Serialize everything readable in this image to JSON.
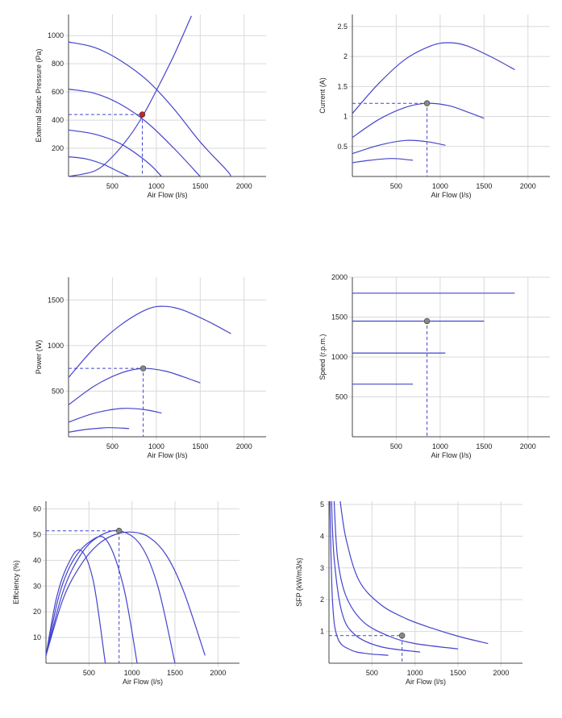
{
  "chart_data": [
    {
      "type": "line",
      "id": "pressure",
      "xlabel": "Air Flow (l/s)",
      "ylabel": "External Static Pressure (Pa)",
      "xlim": [
        0,
        2250
      ],
      "ylim": [
        0,
        1150
      ],
      "xticks": [
        500,
        1000,
        1500,
        2000
      ],
      "yticks": [
        200,
        400,
        600,
        800,
        1000
      ],
      "series": [
        {
          "x": [
            0,
            300,
            600,
            900,
            1200,
            1500,
            1800,
            1850
          ],
          "values": [
            955,
            915,
            820,
            680,
            480,
            245,
            45,
            0
          ]
        },
        {
          "x": [
            0,
            300,
            600,
            900,
            1200,
            1500
          ],
          "values": [
            620,
            590,
            510,
            380,
            200,
            0
          ]
        },
        {
          "x": [
            0,
            300,
            600,
            900,
            1060
          ],
          "values": [
            330,
            300,
            230,
            100,
            0
          ]
        },
        {
          "x": [
            0,
            200,
            400,
            600,
            690
          ],
          "values": [
            140,
            125,
            85,
            25,
            0
          ]
        },
        {
          "x": [
            0,
            300,
            500,
            700,
            850,
            1000,
            1200,
            1400
          ],
          "values": [
            0,
            40,
            140,
            290,
            435,
            610,
            860,
            1140
          ]
        }
      ],
      "point": {
        "x": 840,
        "y": 440,
        "color": "#cc2222"
      }
    },
    {
      "type": "line",
      "id": "current",
      "xlabel": "Air Flow (l/s)",
      "ylabel": "Current (A)",
      "xlim": [
        0,
        2250
      ],
      "ylim": [
        0,
        2.7
      ],
      "xticks": [
        500,
        1000,
        1500,
        2000
      ],
      "yticks": [
        0.5,
        1,
        1.5,
        2,
        2.5
      ],
      "series": [
        {
          "x": [
            0,
            300,
            600,
            900,
            1100,
            1300,
            1600,
            1850
          ],
          "values": [
            1.05,
            1.55,
            1.95,
            2.18,
            2.23,
            2.18,
            1.98,
            1.78
          ]
        },
        {
          "x": [
            0,
            300,
            600,
            850,
            1100,
            1300,
            1500
          ],
          "values": [
            0.65,
            0.95,
            1.15,
            1.22,
            1.18,
            1.08,
            0.97
          ]
        },
        {
          "x": [
            0,
            300,
            600,
            850,
            1060
          ],
          "values": [
            0.38,
            0.52,
            0.6,
            0.58,
            0.52
          ]
        },
        {
          "x": [
            0,
            200,
            450,
            690
          ],
          "values": [
            0.23,
            0.27,
            0.3,
            0.27
          ]
        }
      ],
      "point": {
        "x": 850,
        "y": 1.22,
        "color": "#888888"
      }
    },
    {
      "type": "line",
      "id": "power",
      "xlabel": "Air Flow (l/s)",
      "ylabel": "Power (W)",
      "xlim": [
        0,
        2250
      ],
      "ylim": [
        0,
        1750
      ],
      "xticks": [
        500,
        1000,
        1500,
        2000
      ],
      "yticks": [
        500,
        1000,
        1500
      ],
      "series": [
        {
          "x": [
            0,
            300,
            600,
            900,
            1100,
            1300,
            1600,
            1850
          ],
          "values": [
            650,
            980,
            1230,
            1400,
            1430,
            1390,
            1260,
            1130
          ]
        },
        {
          "x": [
            0,
            300,
            600,
            850,
            1100,
            1300,
            1500
          ],
          "values": [
            350,
            560,
            700,
            750,
            720,
            660,
            590
          ]
        },
        {
          "x": [
            0,
            300,
            600,
            850,
            1060
          ],
          "values": [
            160,
            260,
            310,
            300,
            260
          ]
        },
        {
          "x": [
            0,
            200,
            450,
            690
          ],
          "values": [
            50,
            80,
            100,
            90
          ]
        }
      ],
      "point": {
        "x": 850,
        "y": 750,
        "color": "#888888"
      }
    },
    {
      "type": "line",
      "id": "speed",
      "xlabel": "Air Flow (l/s)",
      "ylabel": "Speed (r.p.m.)",
      "xlim": [
        0,
        2250
      ],
      "ylim": [
        0,
        2000
      ],
      "xticks": [
        500,
        1000,
        1500,
        2000
      ],
      "yticks": [
        500,
        1000,
        1500,
        2000
      ],
      "series": [
        {
          "x": [
            0,
            1850
          ],
          "values": [
            1800,
            1800
          ]
        },
        {
          "x": [
            0,
            1500
          ],
          "values": [
            1450,
            1450
          ]
        },
        {
          "x": [
            0,
            1060
          ],
          "values": [
            1050,
            1050
          ]
        },
        {
          "x": [
            0,
            690
          ],
          "values": [
            660,
            660
          ]
        }
      ],
      "point": {
        "x": 850,
        "y": 1450,
        "color": "#888888"
      }
    },
    {
      "type": "line",
      "id": "efficiency",
      "xlabel": "Air Flow (l/s)",
      "ylabel": "Efficiency (%)",
      "xlim": [
        0,
        2250
      ],
      "ylim": [
        0,
        63
      ],
      "xticks": [
        500,
        1000,
        1500,
        2000
      ],
      "yticks": [
        10,
        20,
        30,
        40,
        50,
        60
      ],
      "series": [
        {
          "x": [
            0,
            200,
            400,
            600,
            800,
            1000,
            1200,
            1400,
            1600,
            1850
          ],
          "values": [
            3,
            25,
            38,
            46,
            50,
            51,
            49,
            42,
            28,
            3
          ]
        },
        {
          "x": [
            0,
            200,
            400,
            600,
            850,
            1100,
            1300,
            1500
          ],
          "values": [
            3,
            28,
            42,
            49,
            51.5,
            46,
            30,
            0
          ]
        },
        {
          "x": [
            0,
            150,
            300,
            500,
            700,
            900,
            1060
          ],
          "values": [
            3,
            26,
            39,
            47,
            48,
            30,
            0
          ]
        },
        {
          "x": [
            0,
            120,
            250,
            400,
            550,
            690
          ],
          "values": [
            3,
            25,
            38,
            44,
            32,
            0
          ]
        }
      ],
      "point": {
        "x": 850,
        "y": 51.5,
        "color": "#888888"
      }
    },
    {
      "type": "line",
      "id": "sfp",
      "xlabel": "Air Flow (l/s)",
      "ylabel": "SFP (kW/m3/s)",
      "xlim": [
        0,
        2250
      ],
      "ylim": [
        0,
        5.1
      ],
      "xticks": [
        500,
        1000,
        1500,
        2000
      ],
      "yticks": [
        1,
        2,
        3,
        4,
        5
      ],
      "series": [
        {
          "x": [
            130,
            200,
            350,
            600,
            900,
            1200,
            1500,
            1850
          ],
          "values": [
            5.1,
            3.9,
            2.6,
            1.85,
            1.4,
            1.1,
            0.85,
            0.62
          ]
        },
        {
          "x": [
            60,
            100,
            200,
            400,
            700,
            1000,
            1500
          ],
          "values": [
            5.1,
            3.3,
            2.1,
            1.3,
            0.85,
            0.62,
            0.45
          ]
        },
        {
          "x": [
            30,
            60,
            150,
            300,
            600,
            1060
          ],
          "values": [
            5.1,
            3.3,
            1.6,
            0.9,
            0.52,
            0.35
          ]
        },
        {
          "x": [
            10,
            40,
            100,
            250,
            450,
            690
          ],
          "values": [
            5.1,
            2.0,
            0.8,
            0.42,
            0.3,
            0.25
          ]
        }
      ],
      "point": {
        "x": 850,
        "y": 0.87,
        "color": "#888888"
      }
    }
  ]
}
